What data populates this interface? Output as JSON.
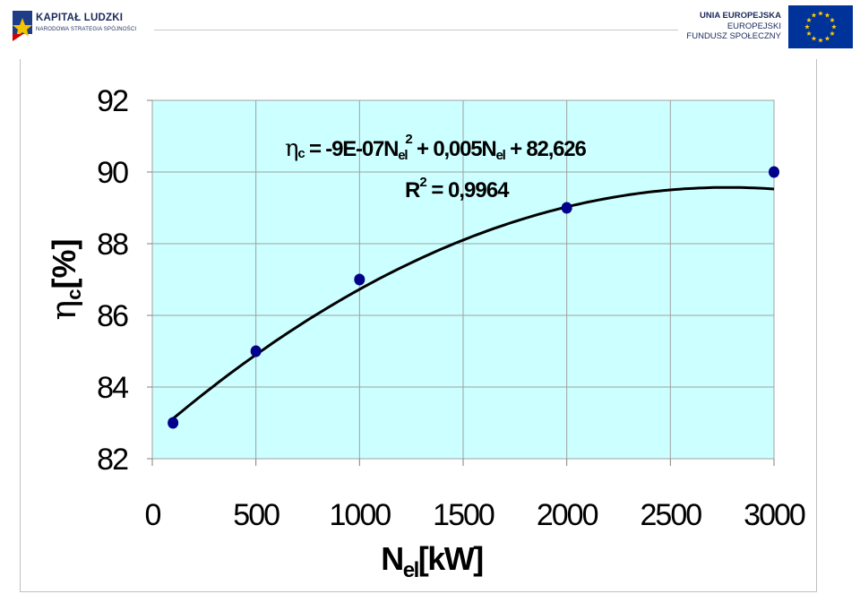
{
  "header": {
    "left_logo": {
      "title": "KAPITAŁ LUDZKI",
      "subtitle": "NARODOWA STRATEGIA SPÓJNOŚCI",
      "icon": "kapital-ludzki-star-logo"
    },
    "right_logo": {
      "line1": "UNIA EUROPEJSKA",
      "line2": "EUROPEJSKI",
      "line3": "FUNDUSZ SPOŁECZNY",
      "icon": "eu-flag-icon"
    }
  },
  "colors": {
    "plot_bg": "#ccffff",
    "marker": "#00008b",
    "line": "#000000",
    "grid": "#a0a0a0"
  },
  "chart_data": {
    "type": "scatter",
    "title": "",
    "xlabel_main": "N",
    "xlabel_sub": "el",
    "xlabel_unit": "[kW]",
    "ylabel_symbol": "η",
    "ylabel_sub": "c",
    "ylabel_unit": "[%]",
    "xlim": [
      0,
      3000
    ],
    "ylim": [
      82,
      92
    ],
    "x_ticks": [
      0,
      500,
      1000,
      1500,
      2000,
      2500,
      3000
    ],
    "y_ticks": [
      82,
      84,
      86,
      88,
      90,
      92
    ],
    "grid": true,
    "series": [
      {
        "x": [
          100,
          500,
          1000,
          2000,
          3000
        ],
        "y": [
          83,
          85,
          87,
          89,
          90
        ]
      }
    ],
    "trendline": {
      "type": "polynomial",
      "coefficients": [
        -9e-07,
        0.005,
        82.626
      ],
      "x_range": [
        100,
        3000
      ]
    },
    "annotation": {
      "eq_symbol": "η",
      "eq_symbol_sub": "c",
      "eq_part1": " = -9E-07N",
      "eq_sub1": "el",
      "eq_sup1": "2",
      "eq_part2": " + 0,005N",
      "eq_sub2": "el",
      "eq_part3": " + 82,626",
      "r2_label": "R",
      "r2_sup": "2",
      "r2_value": " = 0,9964"
    }
  }
}
